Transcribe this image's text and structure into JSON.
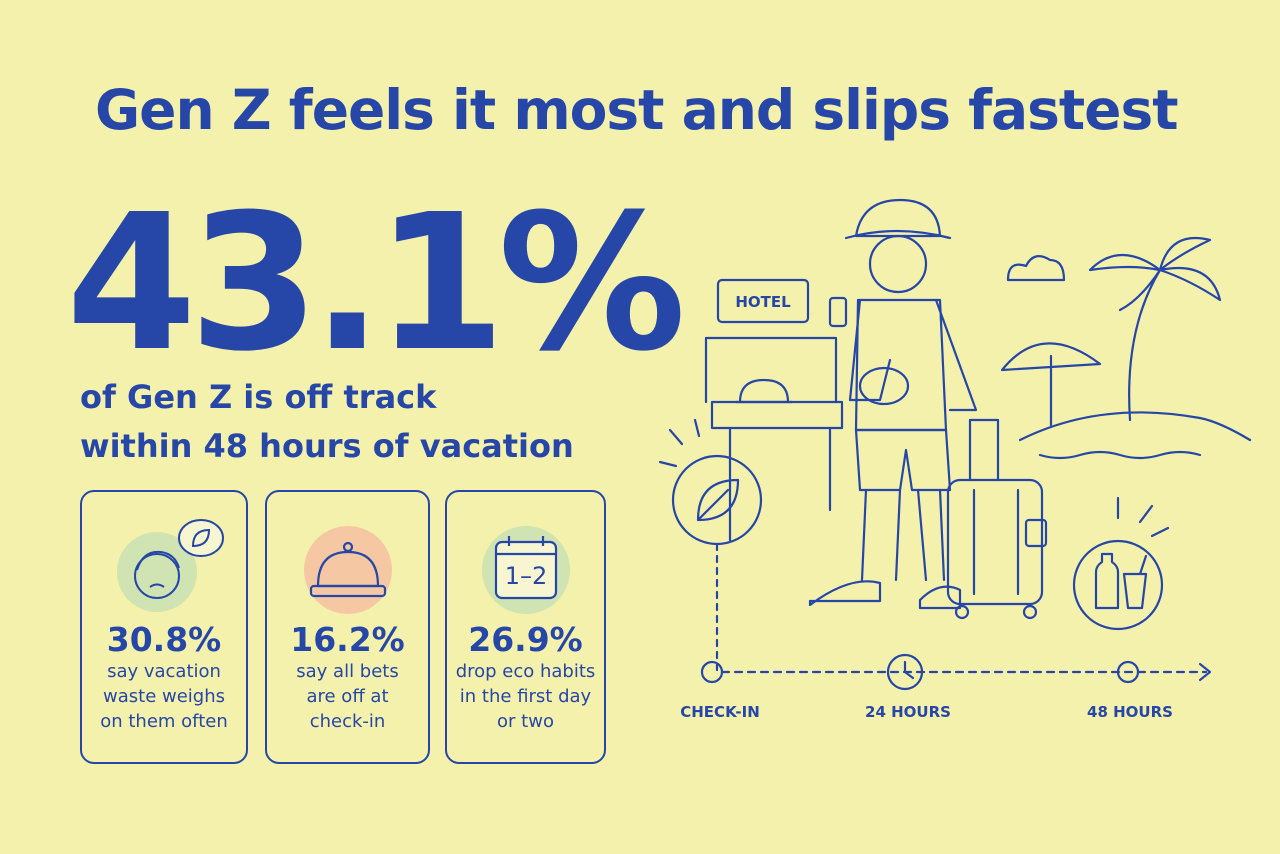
{
  "header": {
    "title": "Gen Z feels it most and slips fastest"
  },
  "headline": {
    "stat": "43.1%",
    "lines": [
      "of Gen Z is off track",
      "within 48 hours of vacation"
    ]
  },
  "cards": [
    {
      "stat": "30.8%",
      "lines": [
        "say vacation",
        "waste weighs",
        "on them often"
      ]
    },
    {
      "stat": "16.2%",
      "lines": [
        "say all bets",
        "are off at",
        "check-in"
      ]
    },
    {
      "stat": "26.9%",
      "icon_label": "1–2",
      "lines": [
        "drop eco habits",
        "in the first day",
        "or two"
      ]
    }
  ],
  "illustration": {
    "sign": "HOTEL",
    "timeline": [
      "CHECK-IN",
      "24 HOURS",
      "48 HOURS"
    ]
  }
}
